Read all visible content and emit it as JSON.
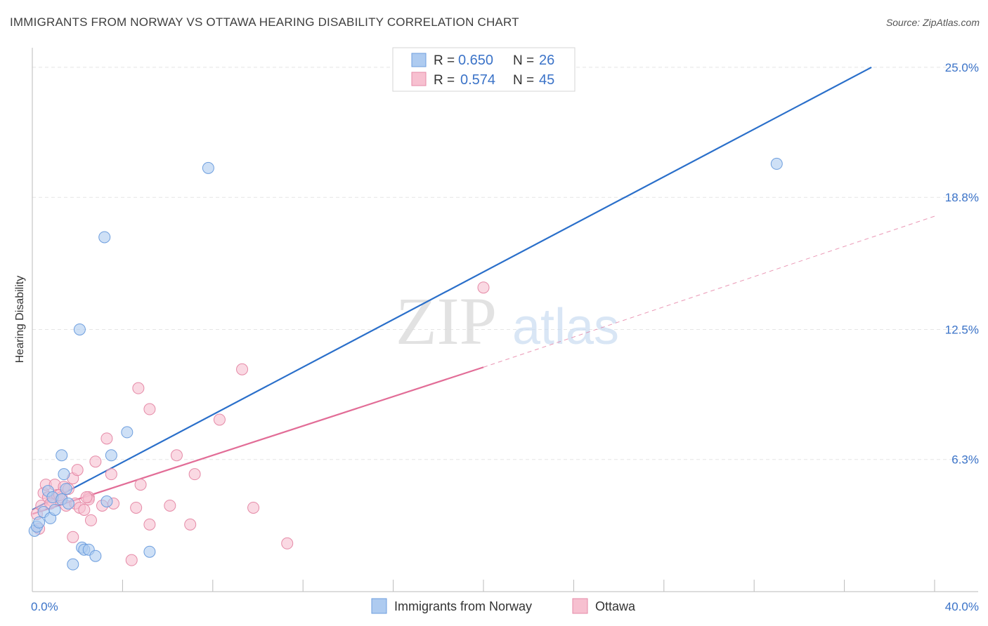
{
  "header": {
    "title": "IMMIGRANTS FROM NORWAY VS OTTAWA HEARING DISABILITY CORRELATION CHART",
    "source": "Source: ZipAtlas.com"
  },
  "colors": {
    "blue_point_fill": "#aecbf0",
    "blue_point_stroke": "#6d9ede",
    "blue_line": "#2a6fca",
    "pink_point_fill": "#f7c0d0",
    "pink_point_stroke": "#e58aa7",
    "pink_line": "#e26d97",
    "axis_text_blue": "#3b73c8",
    "grid": "#e5e5e5"
  },
  "watermark": {
    "zip": "ZIP",
    "atlas": "atlas"
  },
  "chart_data": {
    "type": "scatter",
    "title": "IMMIGRANTS FROM NORWAY VS OTTAWA HEARING DISABILITY CORRELATION CHART",
    "xlabel": "",
    "ylabel": "Hearing Disability",
    "xlim": [
      0,
      40
    ],
    "ylim": [
      0,
      25.6
    ],
    "x_tick_labels": [
      {
        "value": 0,
        "label": "0.0%"
      },
      {
        "value": 40,
        "label": "40.0%"
      }
    ],
    "x_minor_ticks": [
      4,
      8,
      12,
      16,
      20,
      24,
      28,
      32,
      36,
      40
    ],
    "y_ticks": [
      {
        "value": 6.3,
        "label": "6.3%"
      },
      {
        "value": 12.5,
        "label": "12.5%"
      },
      {
        "value": 18.8,
        "label": "18.8%"
      },
      {
        "value": 25.0,
        "label": "25.0%"
      }
    ],
    "grid": true,
    "legend_position": "top-center",
    "legend": [
      {
        "series": "Immigrants from Norway",
        "r_label": "R =",
        "r_value": "0.650",
        "n_label": "N =",
        "n_value": "26"
      },
      {
        "series": "Ottawa",
        "r_label": "R =",
        "r_value": "0.574",
        "n_label": "N =",
        "n_value": "45"
      }
    ],
    "series": [
      {
        "name": "Immigrants from Norway",
        "color": "blue",
        "points": [
          [
            0.1,
            2.9
          ],
          [
            0.2,
            3.1
          ],
          [
            0.3,
            3.3
          ],
          [
            0.5,
            3.8
          ],
          [
            0.7,
            4.8
          ],
          [
            0.8,
            3.5
          ],
          [
            0.9,
            4.5
          ],
          [
            1.0,
            3.9
          ],
          [
            1.3,
            4.4
          ],
          [
            1.3,
            6.5
          ],
          [
            1.4,
            5.6
          ],
          [
            1.5,
            4.9
          ],
          [
            1.6,
            4.2
          ],
          [
            1.8,
            1.3
          ],
          [
            2.1,
            12.5
          ],
          [
            2.2,
            2.1
          ],
          [
            2.3,
            2.0
          ],
          [
            2.5,
            2.0
          ],
          [
            2.8,
            1.7
          ],
          [
            3.2,
            16.9
          ],
          [
            3.3,
            4.3
          ],
          [
            3.5,
            6.5
          ],
          [
            4.2,
            7.6
          ],
          [
            5.2,
            1.9
          ],
          [
            7.8,
            20.2
          ],
          [
            33.0,
            20.4
          ]
        ],
        "trend": {
          "x0": 0.0,
          "y0": 3.9,
          "x1": 37.2,
          "y1": 25.0
        }
      },
      {
        "name": "Ottawa",
        "color": "pink",
        "points": [
          [
            0.2,
            3.7
          ],
          [
            0.3,
            3.0
          ],
          [
            0.4,
            4.1
          ],
          [
            0.5,
            4.7
          ],
          [
            0.6,
            5.1
          ],
          [
            0.7,
            4.5
          ],
          [
            0.9,
            4.3
          ],
          [
            1.0,
            5.1
          ],
          [
            1.1,
            4.6
          ],
          [
            1.3,
            4.5
          ],
          [
            1.4,
            5.0
          ],
          [
            1.5,
            4.1
          ],
          [
            1.6,
            4.9
          ],
          [
            1.8,
            5.4
          ],
          [
            1.8,
            2.6
          ],
          [
            1.9,
            4.2
          ],
          [
            2.0,
            5.8
          ],
          [
            2.1,
            4.0
          ],
          [
            2.3,
            3.9
          ],
          [
            2.5,
            4.5
          ],
          [
            2.5,
            4.4
          ],
          [
            2.6,
            3.4
          ],
          [
            2.8,
            6.2
          ],
          [
            3.1,
            4.1
          ],
          [
            3.3,
            7.3
          ],
          [
            3.5,
            5.6
          ],
          [
            4.6,
            4.0
          ],
          [
            4.7,
            9.7
          ],
          [
            4.8,
            5.1
          ],
          [
            5.2,
            8.7
          ],
          [
            5.2,
            3.2
          ],
          [
            6.1,
            4.1
          ],
          [
            6.4,
            6.5
          ],
          [
            7.0,
            3.2
          ],
          [
            7.2,
            5.6
          ],
          [
            8.3,
            8.2
          ],
          [
            9.3,
            10.6
          ],
          [
            9.8,
            4.0
          ],
          [
            11.3,
            2.3
          ],
          [
            20.0,
            14.5
          ],
          [
            4.4,
            1.5
          ],
          [
            1.2,
            4.6
          ],
          [
            0.8,
            4.2
          ],
          [
            2.4,
            4.5
          ],
          [
            3.6,
            4.2
          ]
        ],
        "trend": {
          "x0": 0.0,
          "y0": 3.7,
          "x1": 20.0,
          "y1": 10.7
        },
        "trend_extension": {
          "x0": 20.0,
          "y0": 10.7,
          "x1": 40.0,
          "y1": 17.9
        }
      }
    ]
  }
}
